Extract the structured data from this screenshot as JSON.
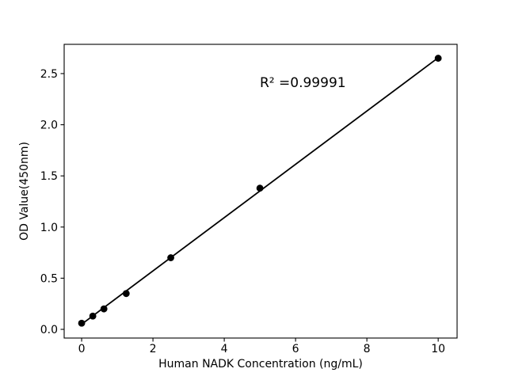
{
  "chart_data": {
    "type": "scatter",
    "title": "",
    "xlabel": "Human NADK Concentration (ng/mL)",
    "ylabel": "OD Value(450nm)",
    "annotation": "R² =0.99991",
    "x": [
      0,
      0.313,
      0.625,
      1.25,
      2.5,
      5,
      10
    ],
    "y": [
      0.06,
      0.13,
      0.2,
      0.35,
      0.7,
      1.38,
      2.65
    ],
    "trendline": {
      "x": [
        0,
        10
      ],
      "y": [
        0.05,
        2.655
      ]
    },
    "xticks": [
      {
        "value": 0,
        "label": "0"
      },
      {
        "value": 2,
        "label": "2"
      },
      {
        "value": 4,
        "label": "4"
      },
      {
        "value": 6,
        "label": "6"
      },
      {
        "value": 8,
        "label": "8"
      },
      {
        "value": 10,
        "label": "10"
      }
    ],
    "yticks": [
      {
        "value": 0.0,
        "label": "0.0"
      },
      {
        "value": 0.5,
        "label": "0.5"
      },
      {
        "value": 1.0,
        "label": "1.0"
      },
      {
        "value": 1.5,
        "label": "1.5"
      },
      {
        "value": 2.0,
        "label": "2.0"
      },
      {
        "value": 2.5,
        "label": "2.5"
      }
    ],
    "xlim": [
      -0.49,
      10.53
    ],
    "ylim": [
      -0.085,
      2.786
    ],
    "grid": false,
    "legend": null,
    "colors": {
      "marker": "#000000",
      "line": "#000000",
      "axis": "#000000",
      "background": "#ffffff"
    }
  }
}
